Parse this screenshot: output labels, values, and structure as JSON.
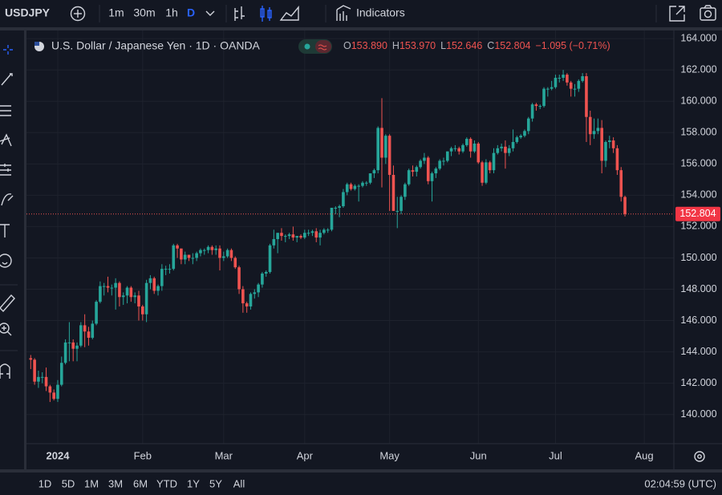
{
  "toolbar": {
    "symbol": "USDJPY",
    "intervals": [
      "1m",
      "30m",
      "1h",
      "D"
    ],
    "indicators": "Indicators"
  },
  "legend": {
    "title": "U.S. Dollar / Japanese Yen · 1D · OANDA",
    "ohlc": [
      {
        "key": "O",
        "value": "153.890"
      },
      {
        "key": "H",
        "value": "153.970"
      },
      {
        "key": "L",
        "value": "152.646"
      },
      {
        "key": "C",
        "value": "152.804"
      }
    ],
    "change": "−1.095 (−0.71%)"
  },
  "chart_data": {
    "type": "candlestick",
    "categories": [
      null,
      null,
      null,
      null,
      null,
      null,
      null,
      "2024",
      null,
      null,
      null,
      null,
      null,
      null,
      null,
      null,
      null,
      null,
      null,
      null,
      null,
      null,
      null,
      null,
      null,
      null,
      null,
      null,
      null,
      "Feb",
      null,
      null,
      null,
      null,
      null,
      null,
      null,
      null,
      null,
      null,
      null,
      null,
      null,
      null,
      null,
      null,
      null,
      null,
      null,
      null,
      "Mar",
      null,
      null,
      null,
      null,
      null,
      null,
      null,
      null,
      null,
      null,
      null,
      null,
      null,
      null,
      null,
      null,
      null,
      null,
      null,
      null,
      "Apr",
      null,
      null,
      null,
      null,
      null,
      null,
      null,
      null,
      null,
      null,
      null,
      null,
      null,
      null,
      null,
      null,
      null,
      null,
      null,
      null,
      null,
      "May",
      null,
      null,
      null,
      null,
      null,
      null,
      null,
      null,
      null,
      null,
      null,
      null,
      null,
      null,
      null,
      null,
      null,
      null,
      null,
      null,
      null,
      null,
      "Jun",
      null,
      null,
      null,
      null,
      null,
      null,
      null,
      null,
      null,
      null,
      null,
      null,
      null,
      null,
      null,
      null,
      null,
      null,
      null,
      "Jul",
      null,
      null,
      null,
      null,
      null,
      null,
      null,
      null,
      null,
      null,
      null,
      null,
      null,
      null,
      null,
      null,
      null,
      null,
      null,
      null,
      null,
      null,
      "Aug",
      null,
      null,
      null
    ],
    "open": [
      143.6,
      143.5,
      142.1,
      142.4,
      142.4,
      141.8,
      141.4,
      141.0,
      141.9,
      143.3,
      144.6,
      144.6,
      144.2,
      144.4,
      145.7,
      145.3,
      144.9,
      145.8,
      147.2,
      148.2,
      148.2,
      148.1,
      148.1,
      148.4,
      147.5,
      147.6,
      148.1,
      147.5,
      147.6,
      146.9,
      146.4,
      148.4,
      148.7,
      147.9,
      148.2,
      149.3,
      149.3,
      149.3,
      150.8,
      150.6,
      149.9,
      150.2,
      150.0,
      150.0,
      150.3,
      150.5,
      150.5,
      150.7,
      150.5,
      150.6,
      150.0,
      150.1,
      150.5,
      150.0,
      149.4,
      148.0,
      147.1,
      146.9,
      147.7,
      147.8,
      148.3,
      149.0,
      149.1,
      150.8,
      151.2,
      151.6,
      151.4,
      151.4,
      151.5,
      151.3,
      151.4,
      151.3,
      151.6,
      151.6,
      151.7,
      151.3,
      151.6,
      151.8,
      151.8,
      153.2,
      153.2,
      153.3,
      154.2,
      154.7,
      154.4,
      154.6,
      154.6,
      154.8,
      154.8,
      155.4,
      155.6,
      158.3,
      156.4,
      157.8,
      155.3,
      153.0,
      153.0,
      153.9,
      154.7,
      155.6,
      155.5,
      155.8,
      156.2,
      156.4,
      154.9,
      155.4,
      155.7,
      156.2,
      156.2,
      156.8,
      157.0,
      157.0,
      156.8,
      157.2,
      157.6,
      156.8,
      157.3,
      156.1,
      154.8,
      156.1,
      155.6,
      156.7,
      157.0,
      157.1,
      156.7,
      157.0,
      157.4,
      157.7,
      157.8,
      158.1,
      158.9,
      159.8,
      159.7,
      159.7,
      160.8,
      160.8,
      160.9,
      161.5,
      161.5,
      161.7,
      161.2,
      160.8,
      160.8,
      161.3,
      161.6,
      159.0,
      157.9,
      158.1,
      158.3,
      156.2,
      157.4,
      157.5,
      157.0,
      155.6,
      153.89,
      null,
      null,
      null,
      null,
      null,
      null,
      null,
      null
    ],
    "high": [
      143.8,
      143.6,
      142.8,
      142.7,
      143.0,
      141.9,
      141.6,
      142.2,
      143.7,
      144.8,
      145.9,
      144.8,
      144.6,
      145.9,
      146.4,
      145.6,
      146.0,
      147.3,
      148.5,
      148.4,
      148.8,
      148.3,
      148.7,
      148.5,
      147.8,
      148.2,
      148.2,
      147.8,
      147.9,
      147.0,
      148.6,
      148.9,
      148.8,
      148.3,
      149.6,
      149.5,
      149.6,
      150.9,
      150.9,
      150.6,
      150.4,
      150.2,
      150.3,
      150.4,
      150.6,
      150.6,
      150.8,
      150.8,
      150.8,
      150.8,
      150.4,
      150.6,
      150.6,
      150.1,
      149.5,
      148.2,
      147.2,
      147.8,
      148.0,
      148.4,
      149.1,
      149.2,
      150.9,
      151.8,
      151.6,
      151.9,
      151.5,
      151.6,
      152.0,
      151.4,
      151.5,
      151.8,
      151.8,
      151.8,
      151.9,
      151.8,
      151.9,
      151.9,
      153.2,
      153.3,
      153.4,
      154.4,
      154.8,
      154.8,
      154.7,
      154.7,
      154.9,
      154.9,
      155.4,
      155.7,
      158.4,
      160.2,
      157.9,
      157.9,
      155.9,
      153.9,
      154.0,
      154.8,
      155.7,
      155.9,
      155.9,
      156.3,
      156.7,
      156.5,
      155.5,
      155.8,
      156.3,
      156.4,
      156.8,
      157.1,
      157.2,
      157.1,
      157.3,
      157.7,
      157.7,
      157.5,
      157.4,
      156.2,
      156.3,
      156.2,
      157.0,
      157.2,
      157.3,
      157.5,
      157.2,
      158.2,
      157.8,
      157.9,
      158.2,
      159.0,
      159.9,
      159.9,
      159.8,
      160.9,
      160.9,
      161.3,
      161.7,
      161.7,
      162.0,
      161.8,
      161.3,
      161.1,
      161.4,
      161.8,
      161.8,
      159.4,
      158.9,
      158.9,
      158.8,
      157.5,
      157.8,
      157.7,
      157.2,
      155.8,
      153.97,
      null,
      null,
      null,
      null,
      null,
      null,
      null,
      null
    ],
    "low": [
      142.9,
      141.9,
      141.7,
      142.0,
      141.5,
      140.8,
      140.9,
      140.8,
      141.8,
      143.2,
      143.4,
      143.4,
      143.4,
      144.3,
      144.3,
      144.4,
      144.8,
      145.7,
      147.1,
      147.6,
      147.8,
      147.6,
      146.7,
      146.9,
      147.0,
      147.1,
      147.2,
      147.1,
      146.0,
      146.0,
      145.9,
      148.0,
      147.7,
      147.6,
      147.9,
      148.9,
      149.0,
      149.2,
      150.0,
      149.6,
      149.6,
      149.8,
      149.6,
      149.8,
      150.1,
      150.2,
      150.3,
      150.2,
      150.2,
      149.2,
      149.8,
      150.0,
      149.8,
      149.3,
      147.7,
      146.5,
      146.5,
      146.7,
      147.4,
      147.5,
      148.1,
      148.8,
      149.0,
      150.6,
      150.3,
      151.1,
      151.0,
      151.2,
      151.1,
      151.0,
      151.2,
      151.2,
      151.4,
      151.4,
      151.0,
      150.8,
      151.5,
      151.6,
      151.7,
      152.8,
      152.6,
      153.2,
      154.0,
      154.3,
      154.3,
      153.6,
      154.5,
      154.6,
      154.7,
      155.1,
      155.4,
      154.5,
      156.0,
      153.0,
      153.0,
      151.9,
      152.8,
      153.7,
      154.6,
      155.2,
      155.2,
      155.7,
      156.0,
      154.7,
      153.6,
      155.1,
      155.6,
      155.9,
      156.1,
      156.5,
      156.8,
      156.6,
      156.7,
      157.1,
      156.4,
      156.7,
      156.0,
      154.6,
      154.7,
      155.4,
      155.4,
      156.6,
      156.8,
      155.7,
      156.5,
      156.8,
      157.3,
      157.6,
      157.7,
      157.9,
      158.7,
      159.4,
      159.5,
      159.6,
      160.3,
      160.7,
      160.8,
      161.2,
      161.3,
      161.0,
      160.3,
      160.3,
      160.6,
      161.2,
      157.4,
      157.2,
      157.6,
      157.9,
      155.4,
      155.8,
      157.0,
      156.7,
      155.3,
      153.6,
      152.646,
      null,
      null,
      null,
      null,
      null,
      null,
      null,
      null
    ],
    "close": [
      143.5,
      142.1,
      142.4,
      142.4,
      141.8,
      141.4,
      141.0,
      141.9,
      143.3,
      144.6,
      144.6,
      144.2,
      144.4,
      145.7,
      145.3,
      144.9,
      145.8,
      147.2,
      148.2,
      148.2,
      148.1,
      148.1,
      148.4,
      147.5,
      147.6,
      148.1,
      147.5,
      147.6,
      146.9,
      146.4,
      148.4,
      148.7,
      147.9,
      148.2,
      149.3,
      149.3,
      149.3,
      150.8,
      150.6,
      149.9,
      150.2,
      150.0,
      150.0,
      150.3,
      150.5,
      150.5,
      150.7,
      150.5,
      150.6,
      150.0,
      150.1,
      150.5,
      150.0,
      149.4,
      148.0,
      147.1,
      146.9,
      147.7,
      147.8,
      148.3,
      149.0,
      149.1,
      150.8,
      151.2,
      151.6,
      151.4,
      151.4,
      151.5,
      151.3,
      151.4,
      151.3,
      151.6,
      151.6,
      151.7,
      151.3,
      151.6,
      151.8,
      151.8,
      153.2,
      153.2,
      153.3,
      154.2,
      154.7,
      154.4,
      154.6,
      154.6,
      154.8,
      154.8,
      155.4,
      155.6,
      158.3,
      156.4,
      157.8,
      155.3,
      153.0,
      153.0,
      153.9,
      154.7,
      155.6,
      155.5,
      155.8,
      156.2,
      156.4,
      154.9,
      155.4,
      155.7,
      156.2,
      156.2,
      156.8,
      157.0,
      157.0,
      156.8,
      157.2,
      157.6,
      156.8,
      157.3,
      156.1,
      154.8,
      156.1,
      155.6,
      156.7,
      157.0,
      157.1,
      156.7,
      157.0,
      157.4,
      157.7,
      157.8,
      158.1,
      158.9,
      159.8,
      159.7,
      159.7,
      160.8,
      160.8,
      160.9,
      161.5,
      161.5,
      161.7,
      161.2,
      160.8,
      160.8,
      161.3,
      161.6,
      159.0,
      157.9,
      158.1,
      158.3,
      156.2,
      157.4,
      157.5,
      157.0,
      155.6,
      153.9,
      152.804,
      null,
      null,
      null,
      null,
      null,
      null,
      null,
      null
    ],
    "colors": {
      "up": "#26a69a",
      "down": "#ef5350"
    },
    "ylim": [
      138.14,
      164.52
    ],
    "yticks": [
      {
        "value": 140,
        "label": "140.000"
      },
      {
        "value": 142,
        "label": "142.000"
      },
      {
        "value": 144,
        "label": "144.000"
      },
      {
        "value": 146,
        "label": "146.000"
      },
      {
        "value": 148,
        "label": "148.000"
      },
      {
        "value": 150,
        "label": "150.000"
      },
      {
        "value": 152,
        "label": "152.000"
      },
      {
        "value": 154,
        "label": "154.000"
      },
      {
        "value": 156,
        "label": "156.000"
      },
      {
        "value": 158,
        "label": "158.000"
      },
      {
        "value": 160,
        "label": "160.000"
      },
      {
        "value": 162,
        "label": "162.000"
      },
      {
        "value": 164,
        "label": "164.000"
      }
    ],
    "grid": true,
    "last_price": {
      "value": 152.804,
      "label": "152.804"
    }
  },
  "bottom_bar": {
    "ranges": [
      "1D",
      "5D",
      "1M",
      "3M",
      "6M",
      "YTD",
      "1Y",
      "5Y",
      "All"
    ],
    "clock": "02:04:59 (UTC)"
  }
}
